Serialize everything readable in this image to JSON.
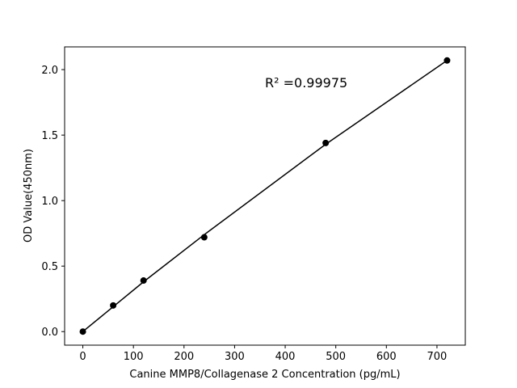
{
  "chart_data": {
    "type": "scatter",
    "x_label": "Canine MMP8/Collagenase 2 Concentration (pg/mL)",
    "y_label": "OD Value(450nm)",
    "annotation": "R² =0.99975",
    "x": [
      0,
      60,
      120,
      240,
      480,
      720
    ],
    "series": [
      {
        "color": "#000000",
        "values": [
          0,
          0.2,
          0.39,
          0.72,
          1.44,
          2.07
        ]
      },
      {
        "color": "#000000",
        "values": [
          0,
          0.19,
          0.38,
          0.74,
          1.43,
          2.07
        ]
      }
    ],
    "xlim": [
      -36,
      756
    ],
    "ylim": [
      -0.1035,
      2.1735
    ],
    "xticks": [
      0,
      100,
      200,
      300,
      400,
      500,
      600,
      700
    ],
    "yticks": [
      {
        "value": 0,
        "label": "0.0"
      },
      0.5,
      {
        "value": 1,
        "label": "1.0"
      },
      1.5,
      {
        "value": 2,
        "label": "2.0"
      }
    ],
    "grid": false
  }
}
